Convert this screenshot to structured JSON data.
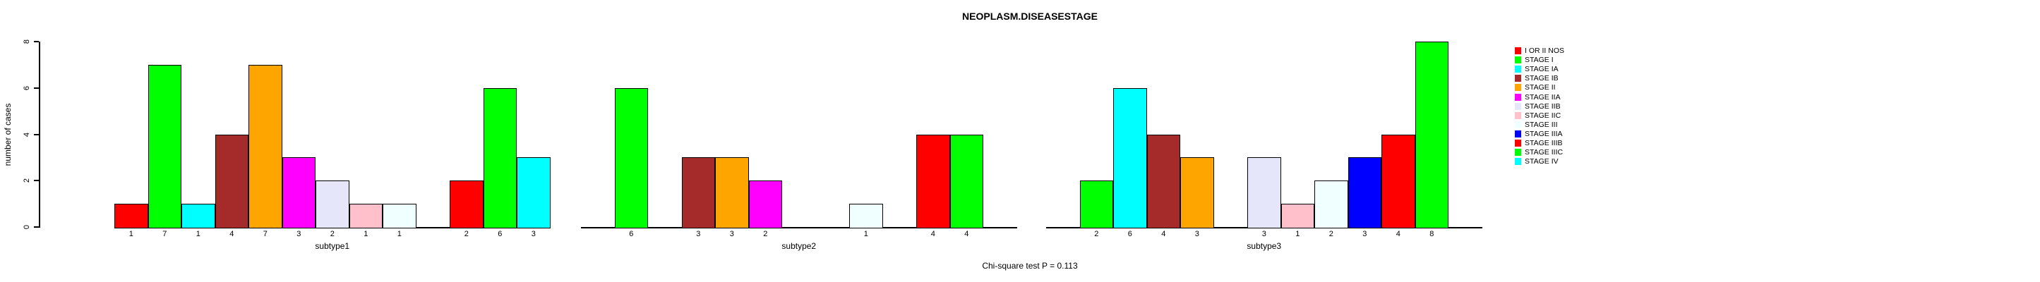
{
  "title": "NEOPLASM.DISEASESTAGE",
  "footer": "Chi-square test P = 0.113",
  "chart_data": {
    "type": "bar",
    "title": "NEOPLASM.DISEASESTAGE",
    "xlabel": "",
    "ylabel": "number of cases",
    "ylim": [
      0,
      8
    ],
    "yticks": [
      0,
      2,
      4,
      6,
      8
    ],
    "grid": false,
    "legend_position": "right",
    "annotation": "Chi-square test P = 0.113",
    "categories": [
      "I OR II NOS",
      "STAGE I",
      "STAGE IA",
      "STAGE IB",
      "STAGE II",
      "STAGE IIA",
      "STAGE IIB",
      "STAGE IIC",
      "STAGE III",
      "STAGE IIIA",
      "STAGE IIIB",
      "STAGE IIIC",
      "STAGE IV"
    ],
    "colors": [
      "#FF0000",
      "#00FF00",
      "#00FFFF",
      "#A52A2A",
      "#FFA500",
      "#FF00FF",
      "#E6E6FA",
      "#FFC0CB",
      "#F0FFFF",
      "#0000FF",
      "#FF0000",
      "#00FF00",
      "#00FFFF"
    ],
    "series": [
      {
        "name": "subtype1",
        "values": [
          1,
          7,
          1,
          4,
          7,
          3,
          2,
          1,
          1,
          0,
          2,
          6,
          3
        ]
      },
      {
        "name": "subtype2",
        "values": [
          0,
          6,
          0,
          3,
          3,
          2,
          0,
          0,
          1,
          0,
          4,
          4,
          0
        ]
      },
      {
        "name": "subtype3",
        "values": [
          0,
          2,
          6,
          4,
          3,
          0,
          3,
          1,
          2,
          3,
          4,
          8,
          0
        ]
      }
    ],
    "bar_label_rule": "value shown under each nonzero bar"
  },
  "legend": {
    "items": [
      {
        "label": "I OR II NOS",
        "color": "#FF0000"
      },
      {
        "label": "STAGE I",
        "color": "#00FF00"
      },
      {
        "label": "STAGE IA",
        "color": "#00FFFF"
      },
      {
        "label": "STAGE IB",
        "color": "#A52A2A"
      },
      {
        "label": "STAGE II",
        "color": "#FFA500"
      },
      {
        "label": "STAGE IIA",
        "color": "#FF00FF"
      },
      {
        "label": "STAGE IIB",
        "color": "#E6E6FA"
      },
      {
        "label": "STAGE IIC",
        "color": "#FFC0CB"
      },
      {
        "label": "STAGE III",
        "color": "#F0FFFF"
      },
      {
        "label": "STAGE IIIA",
        "color": "#0000FF"
      },
      {
        "label": "STAGE IIIB",
        "color": "#FF0000"
      },
      {
        "label": "STAGE IIIC",
        "color": "#00FF00"
      },
      {
        "label": "STAGE IV",
        "color": "#00FFFF"
      }
    ]
  }
}
